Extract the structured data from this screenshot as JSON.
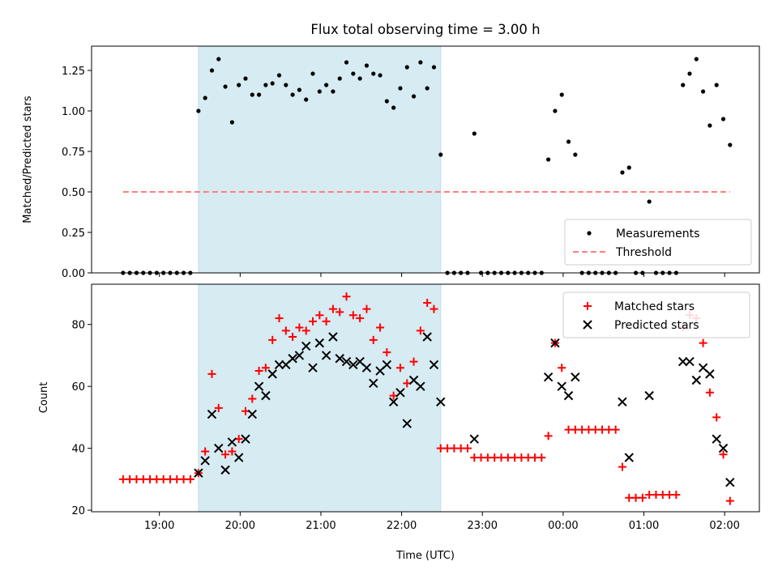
{
  "chart_data": [
    {
      "type": "scatter",
      "title": "Flux total observing time = 3.00 h",
      "ylabel": "Matched/Predicted stars",
      "xlabel": "",
      "x_unit": "minutes after 18:00 UTC",
      "xlim": [
        18.16,
        26.43
      ],
      "ylim": [
        0.0,
        1.4
      ],
      "yticks": [
        0.0,
        0.25,
        0.5,
        0.75,
        1.0,
        1.25
      ],
      "ytick_labels": [
        "0.00",
        "0.25",
        "0.50",
        "0.75",
        "1.00",
        "1.25"
      ],
      "shaded_region": {
        "x_start": "19:29",
        "x_end": "22:29",
        "color": "#add8e6"
      },
      "legend_position": "lower right",
      "series": [
        {
          "name": "Measurements",
          "marker": "dot",
          "color": "#000000",
          "points": [
            [
              "18:33",
              0
            ],
            [
              "18:38",
              0
            ],
            [
              "18:43",
              0
            ],
            [
              "18:48",
              0
            ],
            [
              "18:53",
              0
            ],
            [
              "18:58",
              0
            ],
            [
              "19:03",
              0
            ],
            [
              "19:08",
              0
            ],
            [
              "19:13",
              0
            ],
            [
              "19:18",
              0
            ],
            [
              "19:23",
              0
            ],
            [
              "19:29",
              1.0
            ],
            [
              "19:34",
              1.08
            ],
            [
              "19:39",
              1.25
            ],
            [
              "19:44",
              1.32
            ],
            [
              "19:49",
              1.15
            ],
            [
              "19:54",
              0.93
            ],
            [
              "19:59",
              1.16
            ],
            [
              "20:04",
              1.2
            ],
            [
              "20:09",
              1.1
            ],
            [
              "20:14",
              1.1
            ],
            [
              "20:19",
              1.16
            ],
            [
              "20:24",
              1.17
            ],
            [
              "20:29",
              1.22
            ],
            [
              "20:34",
              1.16
            ],
            [
              "20:39",
              1.1
            ],
            [
              "20:44",
              1.13
            ],
            [
              "20:49",
              1.07
            ],
            [
              "20:54",
              1.23
            ],
            [
              "20:59",
              1.12
            ],
            [
              "21:04",
              1.16
            ],
            [
              "21:09",
              1.12
            ],
            [
              "21:14",
              1.2
            ],
            [
              "21:19",
              1.3
            ],
            [
              "21:24",
              1.23
            ],
            [
              "21:29",
              1.2
            ],
            [
              "21:34",
              1.28
            ],
            [
              "21:39",
              1.23
            ],
            [
              "21:44",
              1.22
            ],
            [
              "21:49",
              1.06
            ],
            [
              "21:54",
              1.02
            ],
            [
              "21:59",
              1.14
            ],
            [
              "22:04",
              1.27
            ],
            [
              "22:09",
              1.09
            ],
            [
              "22:14",
              1.3
            ],
            [
              "22:19",
              1.14
            ],
            [
              "22:24",
              1.27
            ],
            [
              "22:29",
              0.73
            ],
            [
              "22:34",
              0
            ],
            [
              "22:39",
              0
            ],
            [
              "22:44",
              0
            ],
            [
              "22:49",
              0
            ],
            [
              "22:54",
              0.86
            ],
            [
              "22:59",
              0
            ],
            [
              "23:04",
              0
            ],
            [
              "23:09",
              0
            ],
            [
              "23:14",
              0
            ],
            [
              "23:19",
              0
            ],
            [
              "23:24",
              0
            ],
            [
              "23:29",
              0
            ],
            [
              "23:34",
              0
            ],
            [
              "23:39",
              0
            ],
            [
              "23:44",
              0
            ],
            [
              "23:49",
              0.7
            ],
            [
              "23:54",
              1.0
            ],
            [
              "23:59",
              1.1
            ],
            [
              "24:04",
              0.81
            ],
            [
              "24:09",
              0.73
            ],
            [
              "24:14",
              0
            ],
            [
              "24:19",
              0
            ],
            [
              "24:24",
              0
            ],
            [
              "24:29",
              0
            ],
            [
              "24:34",
              0
            ],
            [
              "24:39",
              0
            ],
            [
              "24:44",
              0.62
            ],
            [
              "24:49",
              0.65
            ],
            [
              "24:54",
              0
            ],
            [
              "24:59",
              0
            ],
            [
              "25:04",
              0.44
            ],
            [
              "25:09",
              0
            ],
            [
              "25:14",
              0
            ],
            [
              "25:19",
              0
            ],
            [
              "25:24",
              0
            ],
            [
              "25:29",
              1.16
            ],
            [
              "25:34",
              1.23
            ],
            [
              "25:39",
              1.32
            ],
            [
              "25:44",
              1.12
            ],
            [
              "25:49",
              0.91
            ],
            [
              "25:54",
              1.16
            ],
            [
              "25:59",
              0.95
            ],
            [
              "26:04",
              0.79
            ]
          ]
        },
        {
          "name": "Threshold",
          "style": "dashed",
          "color": "#ff7f7f",
          "points": [
            [
              "18:33",
              0.5
            ],
            [
              "26:04",
              0.5
            ]
          ]
        }
      ]
    },
    {
      "type": "scatter",
      "title": "",
      "ylabel": "Count",
      "xlabel": "Time (UTC)",
      "xlim": [
        18.16,
        26.43
      ],
      "ylim": [
        19.5,
        93
      ],
      "yticks": [
        20,
        40,
        60,
        80
      ],
      "xticks": [
        19,
        20,
        21,
        22,
        23,
        24,
        25,
        26
      ],
      "xtick_labels": [
        "19:00",
        "20:00",
        "21:00",
        "22:00",
        "23:00",
        "00:00",
        "01:00",
        "02:00"
      ],
      "shaded_region": {
        "x_start": "19:29",
        "x_end": "22:29",
        "color": "#add8e6"
      },
      "legend_position": "upper right",
      "series": [
        {
          "name": "Matched stars",
          "marker": "plus",
          "color": "#ff0000",
          "points": [
            [
              "18:33",
              30
            ],
            [
              "18:38",
              30
            ],
            [
              "18:43",
              30
            ],
            [
              "18:48",
              30
            ],
            [
              "18:53",
              30
            ],
            [
              "18:58",
              30
            ],
            [
              "19:03",
              30
            ],
            [
              "19:08",
              30
            ],
            [
              "19:13",
              30
            ],
            [
              "19:18",
              30
            ],
            [
              "19:23",
              30
            ],
            [
              "19:29",
              32
            ],
            [
              "19:34",
              39
            ],
            [
              "19:39",
              64
            ],
            [
              "19:44",
              53
            ],
            [
              "19:49",
              38
            ],
            [
              "19:54",
              39
            ],
            [
              "19:59",
              43
            ],
            [
              "20:04",
              52
            ],
            [
              "20:09",
              56
            ],
            [
              "20:14",
              65
            ],
            [
              "20:19",
              66
            ],
            [
              "20:24",
              75
            ],
            [
              "20:29",
              82
            ],
            [
              "20:34",
              78
            ],
            [
              "20:39",
              76
            ],
            [
              "20:44",
              79
            ],
            [
              "20:49",
              78
            ],
            [
              "20:54",
              81
            ],
            [
              "20:59",
              83
            ],
            [
              "21:04",
              81
            ],
            [
              "21:09",
              85
            ],
            [
              "21:14",
              84
            ],
            [
              "21:19",
              89
            ],
            [
              "21:24",
              83
            ],
            [
              "21:29",
              82
            ],
            [
              "21:34",
              85
            ],
            [
              "21:39",
              75
            ],
            [
              "21:44",
              79
            ],
            [
              "21:49",
              71
            ],
            [
              "21:54",
              57
            ],
            [
              "21:59",
              66
            ],
            [
              "22:04",
              61
            ],
            [
              "22:09",
              68
            ],
            [
              "22:14",
              78
            ],
            [
              "22:19",
              87
            ],
            [
              "22:24",
              85
            ],
            [
              "22:29",
              40
            ],
            [
              "22:34",
              40
            ],
            [
              "22:39",
              40
            ],
            [
              "22:44",
              40
            ],
            [
              "22:49",
              40
            ],
            [
              "22:54",
              37
            ],
            [
              "22:59",
              37
            ],
            [
              "23:04",
              37
            ],
            [
              "23:09",
              37
            ],
            [
              "23:14",
              37
            ],
            [
              "23:19",
              37
            ],
            [
              "23:24",
              37
            ],
            [
              "23:29",
              37
            ],
            [
              "23:34",
              37
            ],
            [
              "23:39",
              37
            ],
            [
              "23:44",
              37
            ],
            [
              "23:49",
              44
            ],
            [
              "23:54",
              74
            ],
            [
              "23:59",
              66
            ],
            [
              "24:04",
              46
            ],
            [
              "24:09",
              46
            ],
            [
              "24:14",
              46
            ],
            [
              "24:19",
              46
            ],
            [
              "24:24",
              46
            ],
            [
              "24:29",
              46
            ],
            [
              "24:34",
              46
            ],
            [
              "24:39",
              46
            ],
            [
              "24:44",
              34
            ],
            [
              "24:49",
              24
            ],
            [
              "24:54",
              24
            ],
            [
              "24:59",
              24
            ],
            [
              "25:04",
              25
            ],
            [
              "25:09",
              25
            ],
            [
              "25:14",
              25
            ],
            [
              "25:19",
              25
            ],
            [
              "25:24",
              25
            ],
            [
              "25:29",
              79
            ],
            [
              "25:34",
              83
            ],
            [
              "25:39",
              82
            ],
            [
              "25:44",
              74
            ],
            [
              "25:49",
              58
            ],
            [
              "25:54",
              50
            ],
            [
              "25:59",
              38
            ],
            [
              "26:04",
              23
            ]
          ]
        },
        {
          "name": "Predicted stars",
          "marker": "x",
          "color": "#000000",
          "points": [
            [
              "19:29",
              32
            ],
            [
              "19:34",
              36
            ],
            [
              "19:39",
              51
            ],
            [
              "19:44",
              40
            ],
            [
              "19:49",
              33
            ],
            [
              "19:54",
              42
            ],
            [
              "19:59",
              37
            ],
            [
              "20:04",
              43
            ],
            [
              "20:09",
              51
            ],
            [
              "20:14",
              60
            ],
            [
              "20:19",
              57
            ],
            [
              "20:24",
              64
            ],
            [
              "20:29",
              67
            ],
            [
              "20:34",
              67
            ],
            [
              "20:39",
              69
            ],
            [
              "20:44",
              70
            ],
            [
              "20:49",
              73
            ],
            [
              "20:54",
              66
            ],
            [
              "20:59",
              74
            ],
            [
              "21:04",
              70
            ],
            [
              "21:09",
              76
            ],
            [
              "21:14",
              69
            ],
            [
              "21:19",
              68
            ],
            [
              "21:24",
              67
            ],
            [
              "21:29",
              68
            ],
            [
              "21:34",
              66
            ],
            [
              "21:39",
              61
            ],
            [
              "21:44",
              65
            ],
            [
              "21:49",
              67
            ],
            [
              "21:54",
              55
            ],
            [
              "21:59",
              58
            ],
            [
              "22:04",
              48
            ],
            [
              "22:09",
              62
            ],
            [
              "22:14",
              60
            ],
            [
              "22:19",
              76
            ],
            [
              "22:24",
              67
            ],
            [
              "22:29",
              55
            ],
            [
              "22:54",
              43
            ],
            [
              "23:49",
              63
            ],
            [
              "23:54",
              74
            ],
            [
              "23:59",
              60
            ],
            [
              "24:04",
              57
            ],
            [
              "24:09",
              63
            ],
            [
              "24:44",
              55
            ],
            [
              "24:49",
              37
            ],
            [
              "25:04",
              57
            ],
            [
              "25:29",
              68
            ],
            [
              "25:34",
              68
            ],
            [
              "25:39",
              62
            ],
            [
              "25:44",
              66
            ],
            [
              "25:49",
              64
            ],
            [
              "25:54",
              43
            ],
            [
              "25:59",
              40
            ],
            [
              "26:04",
              29
            ]
          ]
        }
      ]
    }
  ]
}
